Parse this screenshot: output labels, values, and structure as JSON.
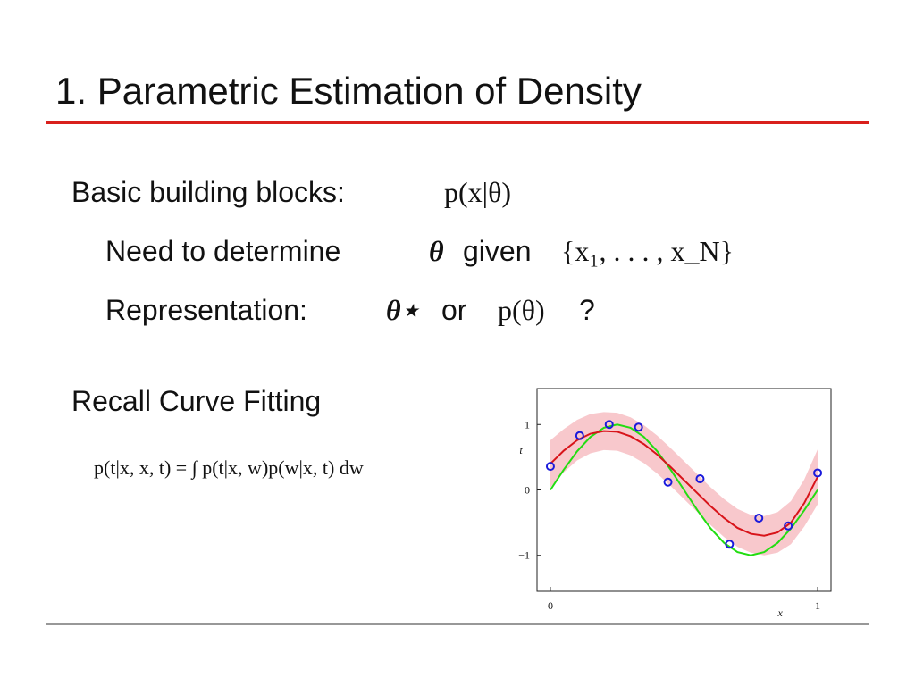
{
  "slide": {
    "title": "1. Parametric Estimation of Density",
    "line1": {
      "text": "Basic building blocks:",
      "math": "p(x|θ)"
    },
    "line2": {
      "text": "Need to determine",
      "math1": "θ",
      "text2": "given",
      "math2": "{x₁, . . . , x_N}"
    },
    "line3": {
      "text": "Representation:",
      "math1": "θ⋆",
      "text2": "or",
      "math2": "p(θ)",
      "text3": "?"
    },
    "line4": {
      "text": "Recall Curve Fitting"
    },
    "equation": "p(t|x, x, t) = ∫ p(t|x, w)p(w|x, t) dw"
  },
  "chart_data": {
    "type": "scatter",
    "xlabel": "x",
    "ylabel": "t",
    "xlim": [
      -0.05,
      1.05
    ],
    "ylim": [
      -1.55,
      1.55
    ],
    "xticks": [
      0,
      1
    ],
    "yticks": [
      {
        "value": -1,
        "label": "−1"
      },
      0,
      1
    ],
    "points": {
      "color": "#1a1adb",
      "x": [
        0,
        0.11,
        0.22,
        0.33,
        0.44,
        0.56,
        0.67,
        0.78,
        0.89,
        1
      ],
      "values": [
        0.36,
        0.83,
        1.0,
        0.96,
        0.12,
        0.17,
        -0.83,
        -0.43,
        -0.55,
        0.26
      ]
    },
    "curve_x": [
      0,
      0.05,
      0.1,
      0.15,
      0.2,
      0.25,
      0.3,
      0.35,
      0.4,
      0.45,
      0.5,
      0.55,
      0.6,
      0.65,
      0.7,
      0.75,
      0.8,
      0.85,
      0.9,
      0.95,
      1
    ],
    "curves": [
      {
        "color": "#22dd11",
        "values": [
          0,
          0.31,
          0.59,
          0.81,
          0.95,
          1,
          0.95,
          0.81,
          0.59,
          0.31,
          0,
          -0.31,
          -0.59,
          -0.81,
          -0.95,
          -1,
          -0.95,
          -0.81,
          -0.59,
          -0.31,
          0
        ]
      },
      {
        "color": "#d8141a",
        "values": [
          0.4,
          0.6,
          0.76,
          0.86,
          0.9,
          0.89,
          0.82,
          0.7,
          0.54,
          0.35,
          0.15,
          -0.05,
          -0.25,
          -0.43,
          -0.58,
          -0.67,
          -0.7,
          -0.65,
          -0.5,
          -0.2,
          0.2
        ]
      }
    ],
    "band": {
      "color": "#f8c8cc",
      "upper": [
        0.76,
        0.93,
        1.07,
        1.16,
        1.19,
        1.18,
        1.11,
        0.99,
        0.83,
        0.64,
        0.44,
        0.24,
        0.04,
        -0.14,
        -0.29,
        -0.38,
        -0.4,
        -0.34,
        -0.17,
        0.16,
        0.62
      ],
      "lower": [
        0.04,
        0.27,
        0.45,
        0.56,
        0.61,
        0.6,
        0.53,
        0.41,
        0.25,
        0.06,
        -0.14,
        -0.34,
        -0.54,
        -0.72,
        -0.87,
        -0.96,
        -1.0,
        -0.96,
        -0.83,
        -0.56,
        -0.22
      ]
    }
  }
}
